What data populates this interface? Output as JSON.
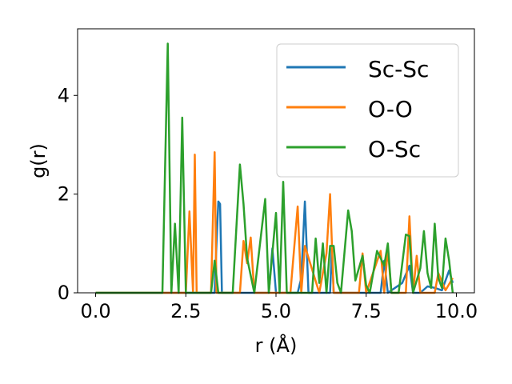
{
  "chart_data": {
    "type": "line",
    "title": "",
    "xlabel": "r (Å)",
    "ylabel": "g(r)",
    "xlim": [
      -0.5,
      10.5
    ],
    "ylim": [
      0,
      5.35
    ],
    "xticks": [
      "0.0",
      "2.5",
      "5.0",
      "7.5",
      "10.0"
    ],
    "yticks": [
      "0",
      "2",
      "4"
    ],
    "legend": "top-right",
    "grid": false,
    "series": [
      {
        "name": "Sc-Sc",
        "color": "#1f77b4",
        "x": [
          0.0,
          3.3,
          3.35,
          3.4,
          3.45,
          3.5,
          4.8,
          4.9,
          5.0,
          5.6,
          5.7,
          5.8,
          5.9,
          6.5,
          6.55,
          6.6,
          7.9,
          8.0,
          8.1,
          8.5,
          8.7,
          8.8,
          9.0,
          9.2,
          9.4,
          9.6,
          9.8,
          9.9
        ],
        "y": [
          0,
          0,
          1.0,
          1.85,
          1.8,
          0,
          0,
          0.9,
          0,
          0,
          0.3,
          1.85,
          0,
          0,
          0.9,
          0,
          0,
          0.65,
          0,
          0.2,
          0.55,
          0,
          0,
          0.13,
          0.1,
          0.05,
          0.45,
          0.2
        ]
      },
      {
        "name": "O-O",
        "color": "#ff7f0e",
        "x": [
          0.0,
          2.5,
          2.6,
          2.7,
          2.75,
          2.8,
          2.85,
          3.2,
          3.3,
          3.35,
          3.4,
          4.0,
          4.1,
          4.2,
          4.3,
          4.4,
          5.4,
          5.6,
          5.7,
          5.8,
          6.2,
          6.4,
          6.5,
          6.6,
          7.3,
          7.4,
          7.5,
          7.9,
          8.0,
          8.1,
          8.2,
          8.6,
          8.7,
          8.8,
          8.9,
          9.0,
          9.4,
          9.5,
          9.7,
          9.9
        ],
        "y": [
          0,
          0,
          1.65,
          0,
          2.8,
          0,
          0,
          0,
          2.85,
          0,
          0,
          0,
          1.05,
          0.6,
          1.12,
          0,
          0,
          1.75,
          0,
          0.95,
          0,
          0.8,
          2.0,
          0,
          0,
          0.8,
          0,
          0.85,
          0,
          0.9,
          0,
          0,
          1.55,
          0,
          0.75,
          0,
          0,
          0.4,
          0.05,
          0.3
        ]
      },
      {
        "name": "O-Sc",
        "color": "#2ca02c",
        "x": [
          0.0,
          1.85,
          2.0,
          2.1,
          2.2,
          2.3,
          2.4,
          2.5,
          3.2,
          3.3,
          3.4,
          3.8,
          4.0,
          4.1,
          4.2,
          4.4,
          4.7,
          4.8,
          5.0,
          5.1,
          5.2,
          5.3,
          5.4,
          6.0,
          6.1,
          6.2,
          6.3,
          6.4,
          6.5,
          6.6,
          6.7,
          6.8,
          7.0,
          7.1,
          7.2,
          7.4,
          7.5,
          7.6,
          7.8,
          8.0,
          8.1,
          8.2,
          8.4,
          8.6,
          8.7,
          8.8,
          9.0,
          9.1,
          9.2,
          9.3,
          9.4,
          9.5,
          9.6,
          9.7,
          9.8,
          9.9
        ],
        "y": [
          0,
          0,
          5.05,
          0,
          1.4,
          0,
          3.55,
          0,
          0,
          0.65,
          0,
          0,
          2.6,
          1.8,
          0.7,
          0,
          1.9,
          0,
          1.62,
          0,
          2.25,
          0,
          0,
          0,
          1.1,
          0.2,
          1.0,
          0,
          0.95,
          0.95,
          0.2,
          0,
          1.67,
          1.25,
          0.25,
          0.75,
          0.15,
          0,
          0.85,
          0.55,
          1.0,
          0,
          0,
          1.18,
          1.15,
          0,
          0.5,
          1.25,
          0.4,
          0.1,
          1.4,
          0.3,
          0.1,
          1.1,
          0.65,
          0
        ]
      }
    ]
  }
}
